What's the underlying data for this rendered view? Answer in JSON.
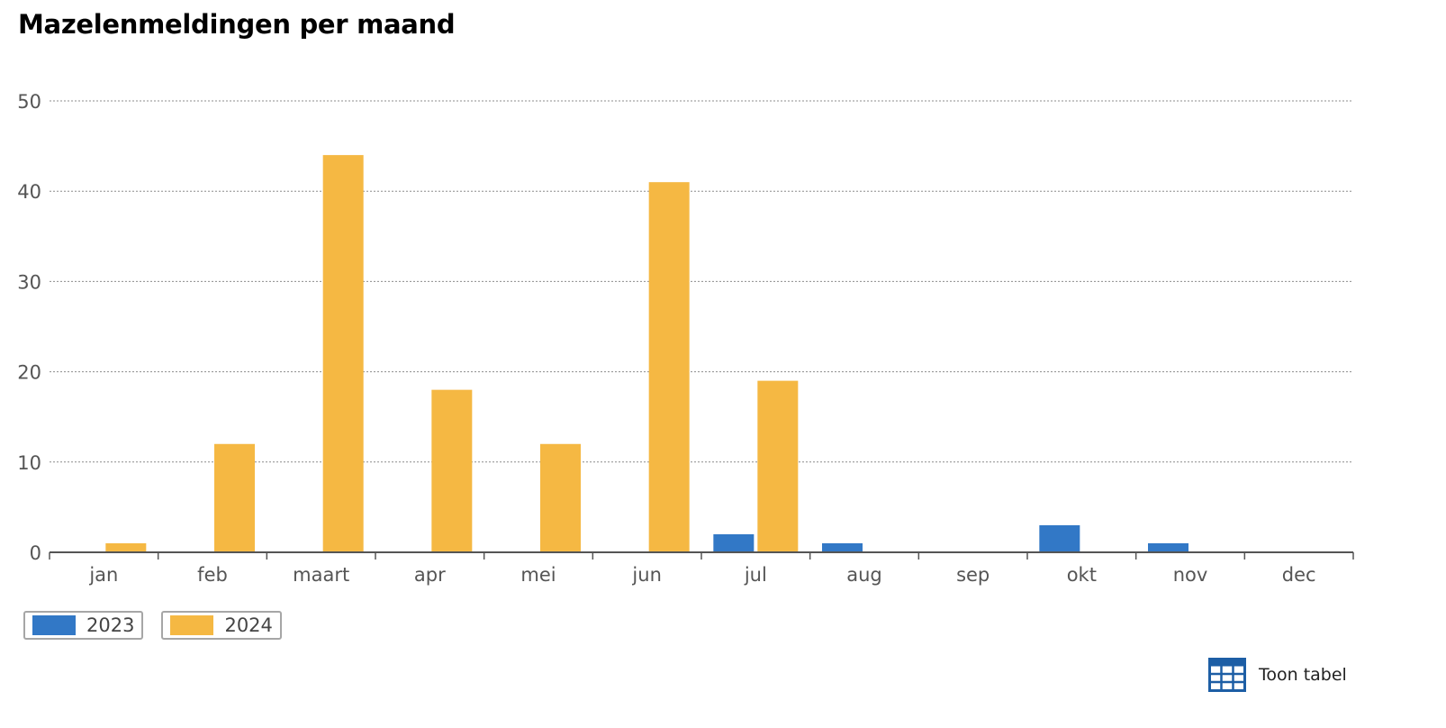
{
  "chart_data": {
    "type": "bar",
    "title": "Mazelenmeldingen per maand",
    "categories": [
      "jan",
      "feb",
      "maart",
      "apr",
      "mei",
      "jun",
      "jul",
      "aug",
      "sep",
      "okt",
      "nov",
      "dec"
    ],
    "series": [
      {
        "name": "2023",
        "color": "#3278c6",
        "values": [
          0,
          0,
          0,
          0,
          0,
          0,
          2,
          1,
          0,
          3,
          1,
          0
        ]
      },
      {
        "name": "2024",
        "color": "#f5b843",
        "values": [
          1,
          12,
          44,
          18,
          12,
          41,
          19,
          null,
          null,
          null,
          null,
          null
        ]
      }
    ],
    "ylim": [
      0,
      50
    ],
    "yticks": [
      0,
      10,
      20,
      30,
      40,
      50
    ],
    "xlabel": "",
    "ylabel": "",
    "grid": "horizontal-dotted",
    "legend_position": "bottom-left"
  },
  "controls": {
    "table_toggle_label": "Toon tabel",
    "table_icon": "table-grid-icon"
  }
}
